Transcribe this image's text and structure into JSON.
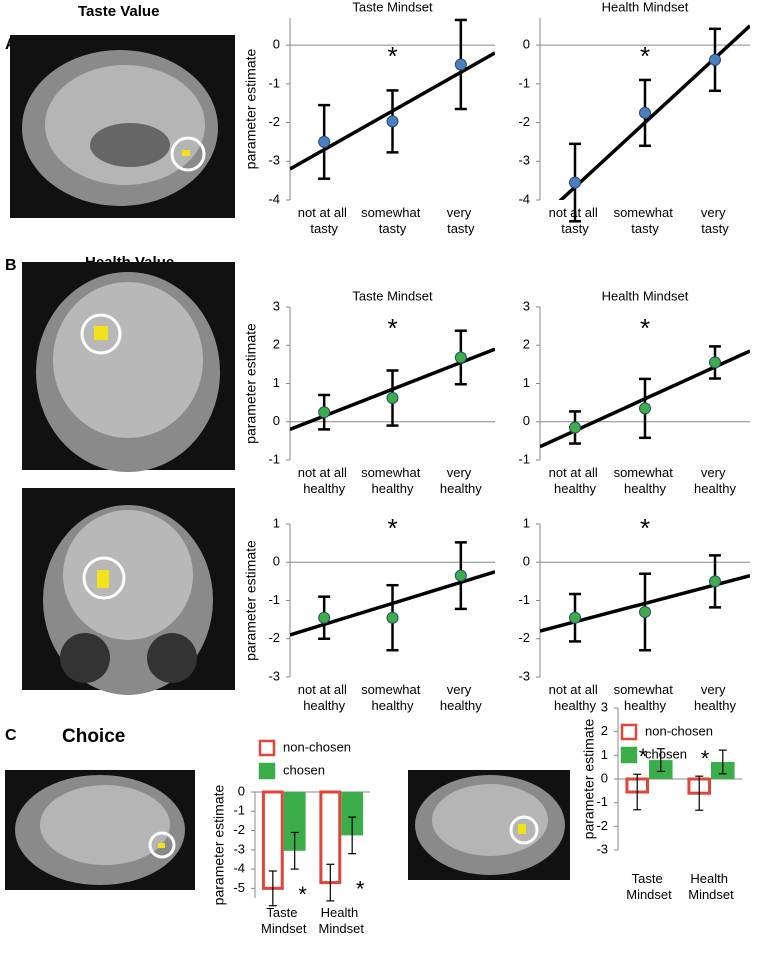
{
  "panels": [
    {
      "letter": "A",
      "title": "Taste Value"
    },
    {
      "letter": "B",
      "title": "Health Value"
    },
    {
      "letter": "C",
      "title": "Choice"
    }
  ],
  "chart_data": [
    {
      "type": "dot",
      "title": "Taste Mindset",
      "ylabel": "parameter estimate",
      "categories": [
        "not at all tasty",
        "somewhat tasty",
        "very tasty"
      ],
      "values": [
        -2.5,
        -1.97,
        -0.5
      ],
      "errors": [
        0.95,
        0.8,
        1.15
      ],
      "color": "#4a7fc1",
      "trendline": [
        -3.2,
        -0.2
      ],
      "ylim": [
        -4,
        0.7
      ],
      "yticks": [
        0,
        -1,
        -2,
        -3,
        -4
      ],
      "annotations": [
        "*"
      ]
    },
    {
      "type": "dot",
      "title": "Health Mindset",
      "categories": [
        "not at all tasty",
        "somewhat tasty",
        "very tasty"
      ],
      "values": [
        -3.55,
        -1.75,
        -0.38
      ],
      "errors": [
        1.0,
        0.85,
        0.8
      ],
      "color": "#4a7fc1",
      "trendline": [
        -4.5,
        0.5
      ],
      "ylim": [
        -4,
        0.7
      ],
      "yticks": [
        0,
        -1,
        -2,
        -3,
        -4
      ],
      "annotations": [
        "*"
      ]
    },
    {
      "type": "dot",
      "title": "Taste Mindset",
      "ylabel": "parameter estimate",
      "categories": [
        "not at all healthy",
        "somewhat healthy",
        "very healthy"
      ],
      "values": [
        0.25,
        0.62,
        1.68
      ],
      "errors": [
        0.45,
        0.72,
        0.7
      ],
      "color": "#3cae49",
      "trendline": [
        -0.2,
        1.9
      ],
      "ylim": [
        -1,
        3
      ],
      "yticks": [
        3,
        2,
        1,
        0,
        -1
      ],
      "annotations": [
        "*"
      ]
    },
    {
      "type": "dot",
      "title": "Health Mindset",
      "categories": [
        "not at all healthy",
        "somewhat healthy",
        "very healthy"
      ],
      "values": [
        -0.15,
        0.35,
        1.55
      ],
      "errors": [
        0.42,
        0.77,
        0.42
      ],
      "color": "#3cae49",
      "trendline": [
        -0.65,
        1.85
      ],
      "ylim": [
        -1,
        3
      ],
      "yticks": [
        3,
        2,
        1,
        0,
        -1
      ],
      "annotations": [
        "*"
      ]
    },
    {
      "type": "dot",
      "ylabel": "parameter estimate",
      "categories": [
        "not at all healthy",
        "somewhat healthy",
        "very healthy"
      ],
      "values": [
        -1.45,
        -1.45,
        -0.35
      ],
      "errors": [
        0.55,
        0.85,
        0.87
      ],
      "color": "#3cae49",
      "trendline": [
        -1.9,
        -0.25
      ],
      "ylim": [
        -3,
        1
      ],
      "yticks": [
        1,
        0,
        -1,
        -2,
        -3
      ],
      "annotations": [
        "*"
      ]
    },
    {
      "type": "dot",
      "categories": [
        "not at all healthy",
        "somewhat healthy",
        "very healthy"
      ],
      "values": [
        -1.45,
        -1.3,
        -0.5
      ],
      "errors": [
        0.62,
        1.0,
        0.68
      ],
      "color": "#3cae49",
      "trendline": [
        -1.8,
        -0.35
      ],
      "ylim": [
        -3,
        1
      ],
      "yticks": [
        1,
        0,
        -1,
        -2,
        -3
      ],
      "annotations": [
        "*"
      ]
    },
    {
      "type": "bar",
      "ylabel": "parameter estimate",
      "categories": [
        "Taste Mindset",
        "Health Mindset"
      ],
      "series": [
        {
          "name": "non-chosen",
          "color": "#e0443a",
          "outline": true,
          "values": [
            -5,
            -4.7
          ],
          "errors": [
            0.9,
            0.95
          ]
        },
        {
          "name": "chosen",
          "color": "#3cae49",
          "values": [
            -3.05,
            -2.25
          ],
          "errors": [
            0.95,
            0.95
          ]
        }
      ],
      "ylim": [
        -5.5,
        0
      ],
      "yticks": [
        0,
        -1,
        -2,
        -3,
        -4,
        -5
      ],
      "annotations": [
        "*",
        "*"
      ]
    },
    {
      "type": "bar",
      "ylabel": "parameter estimate",
      "categories": [
        "Taste Mindset",
        "Health Mindset"
      ],
      "series": [
        {
          "name": "non-chosen",
          "color": "#e0443a",
          "outline": true,
          "values": [
            -0.55,
            -0.6
          ],
          "errors": [
            0.75,
            0.72
          ]
        },
        {
          "name": "chosen",
          "color": "#3cae49",
          "values": [
            0.8,
            0.72
          ],
          "errors": [
            0.48,
            0.5
          ]
        }
      ],
      "ylim": [
        -3,
        3
      ],
      "yticks": [
        3,
        2,
        1,
        0,
        -1,
        -2,
        -3
      ],
      "annotations": [
        "*",
        "*"
      ]
    }
  ]
}
